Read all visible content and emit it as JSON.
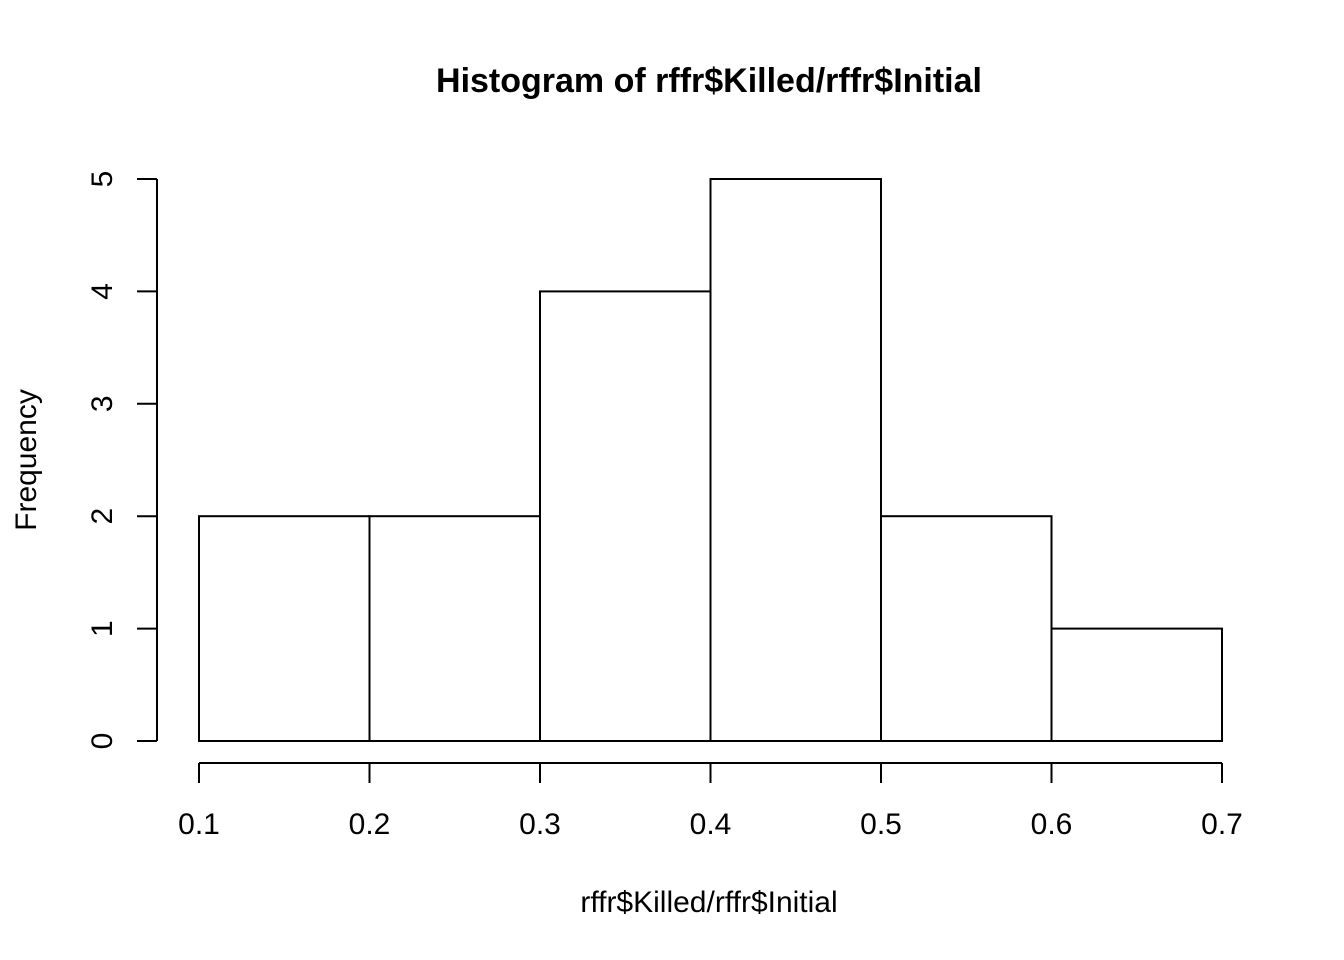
{
  "chart_data": {
    "type": "bar",
    "title": "Histogram of rffr$Killed/rffr$Initial",
    "xlabel": "rffr$Killed/rffr$Initial",
    "ylabel": "Frequency",
    "bins": [
      {
        "start": 0.1,
        "end": 0.2,
        "value": 2
      },
      {
        "start": 0.2,
        "end": 0.3,
        "value": 2
      },
      {
        "start": 0.3,
        "end": 0.4,
        "value": 4
      },
      {
        "start": 0.4,
        "end": 0.5,
        "value": 5
      },
      {
        "start": 0.5,
        "end": 0.6,
        "value": 2
      },
      {
        "start": 0.6,
        "end": 0.7,
        "value": 1
      }
    ],
    "xlim": [
      0.1,
      0.7
    ],
    "ylim": [
      0,
      5
    ],
    "x_ticks": [
      "0.1",
      "0.2",
      "0.3",
      "0.4",
      "0.5",
      "0.6",
      "0.7"
    ],
    "y_ticks": [
      "0",
      "1",
      "2",
      "3",
      "4",
      "5"
    ],
    "grid": false,
    "legend": "none",
    "colors": {
      "bar_fill": "#ffffff",
      "bar_stroke": "#000000",
      "axis": "#000000",
      "text": "#000000"
    }
  }
}
